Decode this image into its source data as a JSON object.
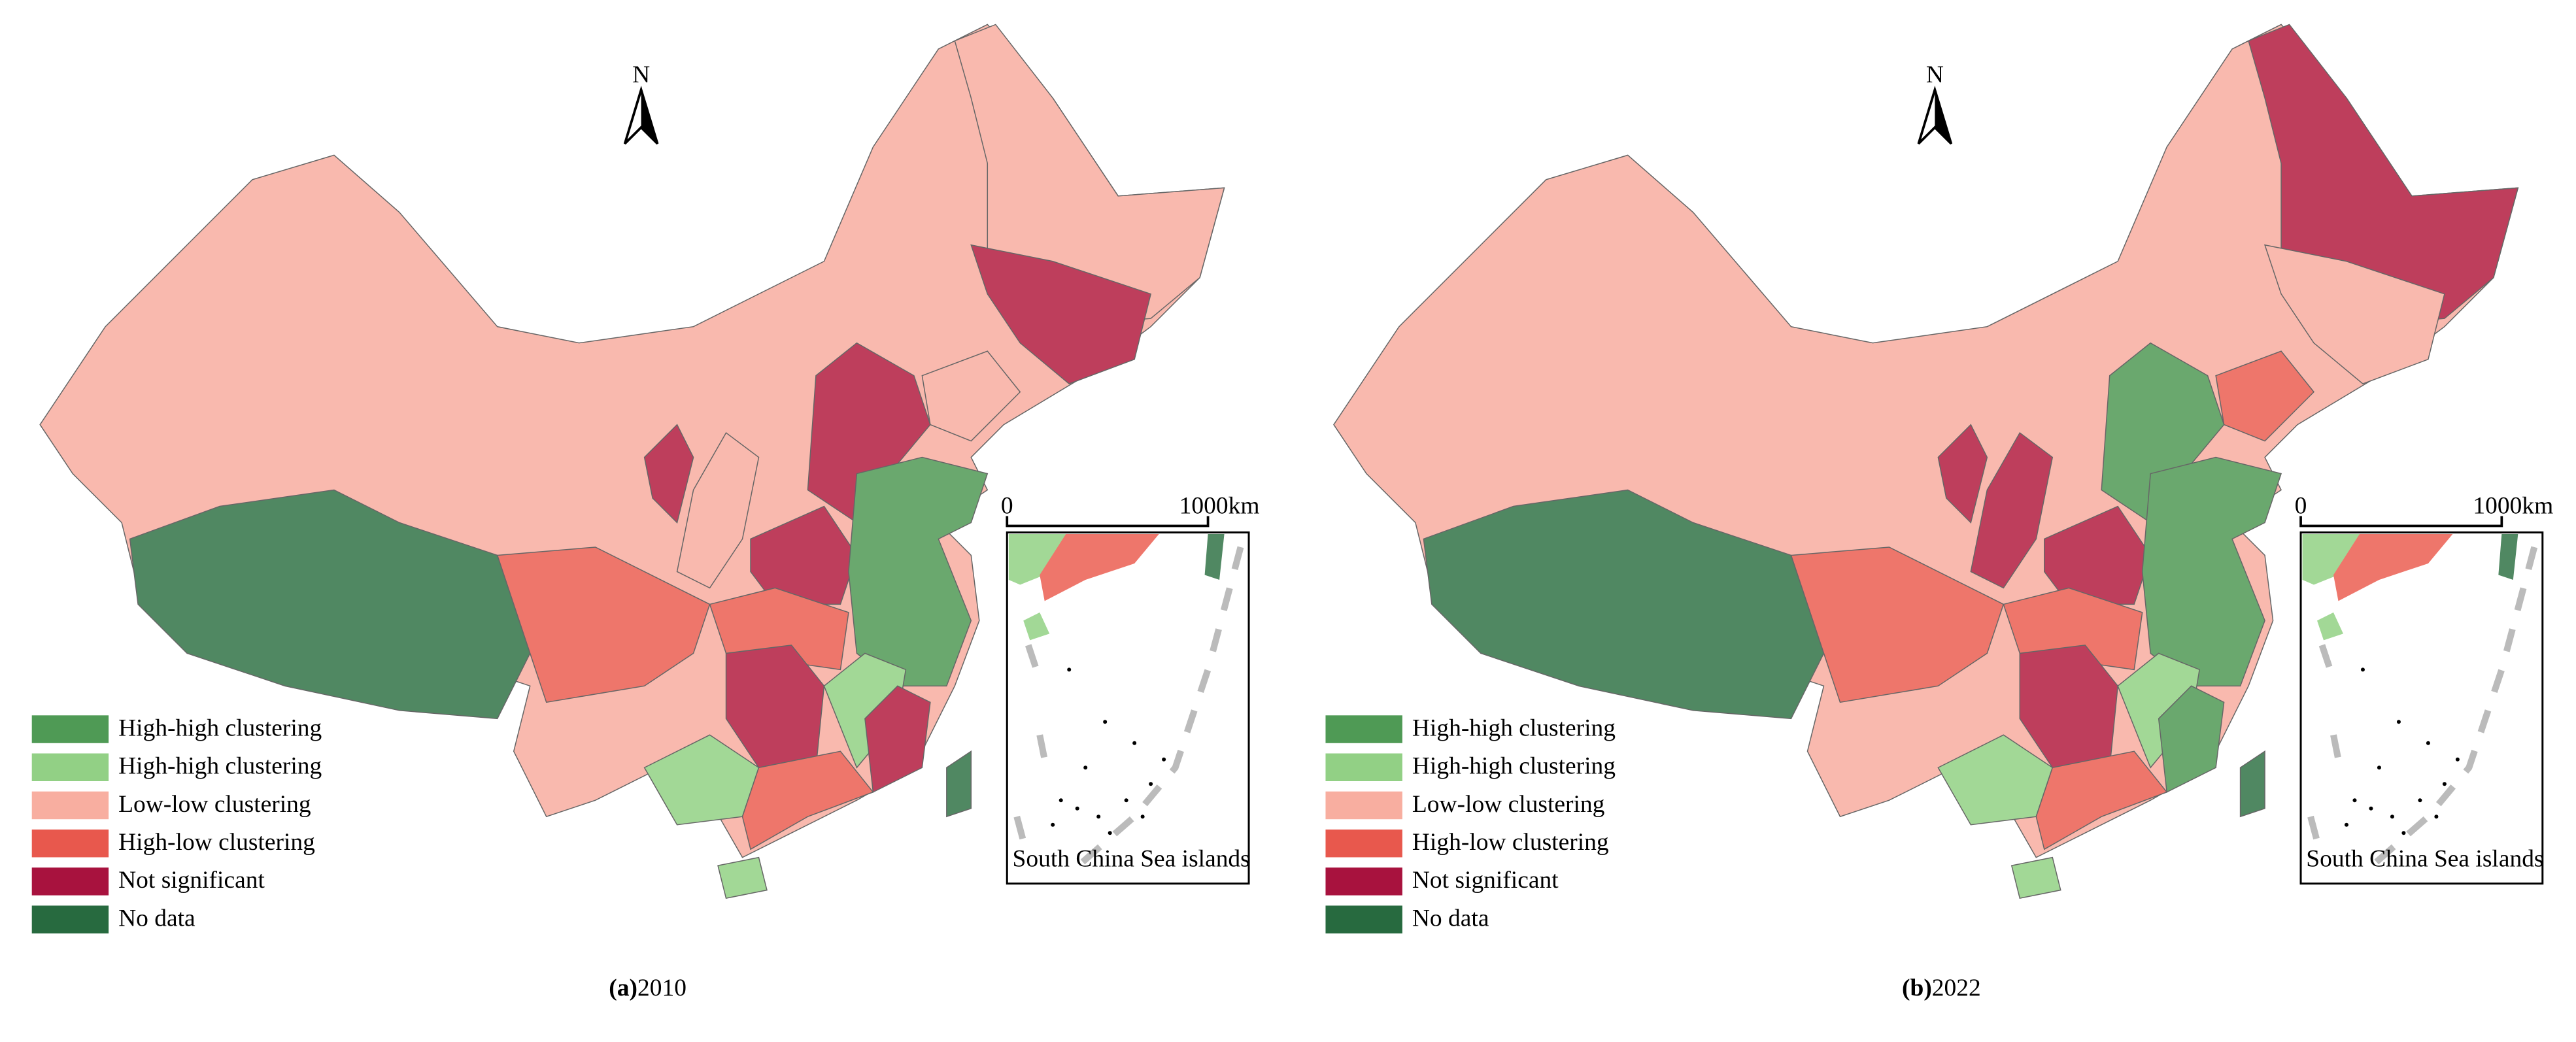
{
  "panels": [
    {
      "label": "(a)",
      "year": "2010",
      "north": "N",
      "scale": {
        "start": "0",
        "end": "1000km"
      },
      "inset_label": "South China Sea islands",
      "legend": [
        {
          "label": "High-high clustering",
          "color": "#4f9a55"
        },
        {
          "label": "High-high clustering",
          "color": "#92d085"
        },
        {
          "label": "Low-low clustering",
          "color": "#f8aea0"
        },
        {
          "label": "High-low clustering",
          "color": "#e8584d"
        },
        {
          "label": "Not significant",
          "color": "#a8123e"
        },
        {
          "label": "No data",
          "color": "#276a3f"
        }
      ]
    },
    {
      "label": "(b)",
      "year": "2022",
      "north": "N",
      "scale": {
        "start": "0",
        "end": "1000km"
      },
      "inset_label": "South China Sea islands",
      "legend": [
        {
          "label": "High-high clustering",
          "color": "#4f9a55"
        },
        {
          "label": "High-high clustering",
          "color": "#92d085"
        },
        {
          "label": "Low-low clustering",
          "color": "#f8aea0"
        },
        {
          "label": "High-low clustering",
          "color": "#e8584d"
        },
        {
          "label": "Not significant",
          "color": "#a8123e"
        },
        {
          "label": "No data",
          "color": "#276a3f"
        }
      ]
    }
  ]
}
